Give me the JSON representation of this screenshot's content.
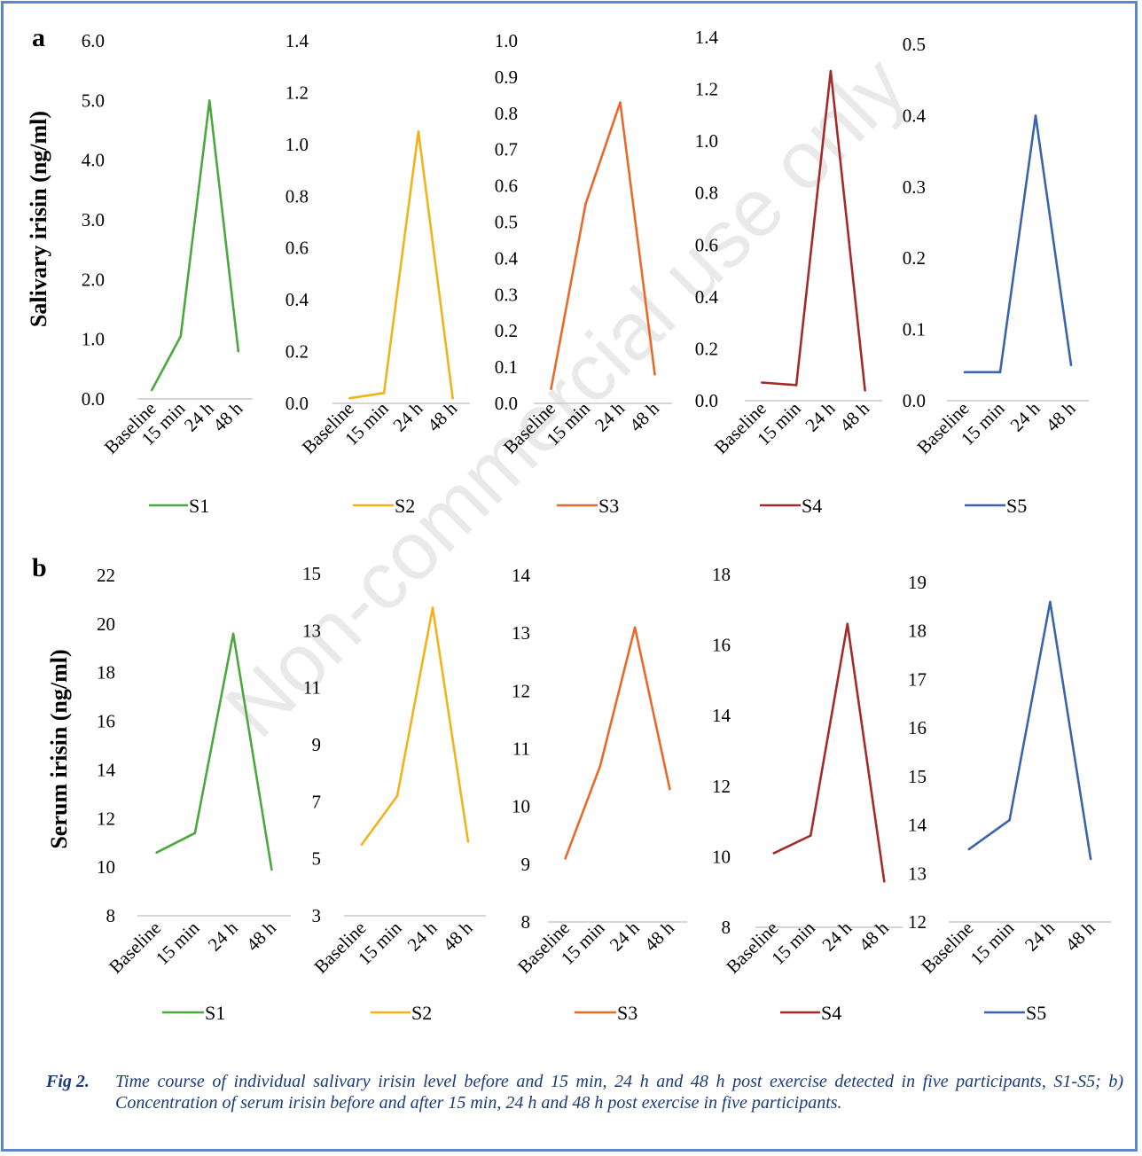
{
  "watermark": "Non-commercial use only",
  "colors": {
    "frame": "#5b87c5",
    "caption": "#1a3a78",
    "S1": "#4aa83e",
    "S2": "#f2b21c",
    "S3": "#e86a2b",
    "S4": "#a52a2a",
    "S5": "#3a64ad"
  },
  "caption": {
    "label": "Fig 2.",
    "text": "Time course of individual salivary irisin level before and 15 min, 24 h and 48 h post exercise detected in five participants, S1-S5; b) Concentration of serum irisin before and after 15 min, 24 h and 48 h post exercise in five participants."
  },
  "chart_data": [
    {
      "panel": "a",
      "type": "line",
      "ylabel": "Salivary irisin (ng/ml)",
      "categories": [
        "Baseline",
        "15 min",
        "24 h",
        "48 h"
      ],
      "subplots": [
        {
          "series": "S1",
          "ylim": [
            0,
            6
          ],
          "yticks": [
            "0.0",
            "1.0",
            "2.0",
            "3.0",
            "4.0",
            "5.0",
            "6.0"
          ],
          "values": [
            0.15,
            1.05,
            5.0,
            0.8
          ]
        },
        {
          "series": "S2",
          "ylim": [
            0,
            1.4
          ],
          "yticks": [
            "0.0",
            "0.2",
            "0.4",
            "0.6",
            "0.8",
            "1.0",
            "1.2",
            "1.4"
          ],
          "values": [
            0.02,
            0.04,
            1.05,
            0.02
          ]
        },
        {
          "series": "S3",
          "ylim": [
            0,
            1.0
          ],
          "yticks": [
            "0.0",
            "0.1",
            "0.2",
            "0.3",
            "0.4",
            "0.5",
            "0.6",
            "0.7",
            "0.8",
            "0.9",
            "1.0"
          ],
          "values": [
            0.04,
            0.55,
            0.83,
            0.08
          ]
        },
        {
          "series": "S4",
          "ylim": [
            0,
            1.4
          ],
          "yticks": [
            "0.0",
            "0.2",
            "0.4",
            "0.6",
            "0.8",
            "1.0",
            "1.2",
            "1.4"
          ],
          "values": [
            0.07,
            0.06,
            1.27,
            0.04
          ]
        },
        {
          "series": "S5",
          "ylim": [
            0,
            0.5
          ],
          "yticks": [
            "0.0",
            "0.1",
            "0.2",
            "0.3",
            "0.4",
            "0.5"
          ],
          "values": [
            0.04,
            0.04,
            0.4,
            0.05
          ]
        }
      ]
    },
    {
      "panel": "b",
      "type": "line",
      "ylabel": "Serum irisin (ng/ml)",
      "categories": [
        "Baseline",
        "15 min",
        "24 h",
        "48 h"
      ],
      "subplots": [
        {
          "series": "S1",
          "ylim": [
            8,
            22
          ],
          "yticks": [
            "8",
            "10",
            "12",
            "14",
            "16",
            "18",
            "20",
            "22"
          ],
          "values": [
            10.6,
            11.4,
            19.6,
            9.9
          ]
        },
        {
          "series": "S2",
          "ylim": [
            3,
            15
          ],
          "yticks": [
            "3",
            "5",
            "7",
            "9",
            "11",
            "13",
            "15"
          ],
          "values": [
            5.5,
            7.2,
            13.8,
            5.6
          ]
        },
        {
          "series": "S3",
          "ylim": [
            8,
            14
          ],
          "yticks": [
            "8",
            "9",
            "10",
            "11",
            "12",
            "13",
            "14"
          ],
          "values": [
            9.1,
            10.7,
            13.1,
            10.3
          ]
        },
        {
          "series": "S4",
          "ylim": [
            8,
            18
          ],
          "yticks": [
            "8",
            "10",
            "12",
            "14",
            "16",
            "18"
          ],
          "values": [
            10.1,
            10.6,
            16.6,
            9.3
          ]
        },
        {
          "series": "S5",
          "ylim": [
            12,
            19
          ],
          "yticks": [
            "12",
            "13",
            "14",
            "15",
            "16",
            "17",
            "18",
            "19"
          ],
          "values": [
            13.5,
            14.1,
            18.6,
            13.3
          ]
        }
      ]
    }
  ]
}
